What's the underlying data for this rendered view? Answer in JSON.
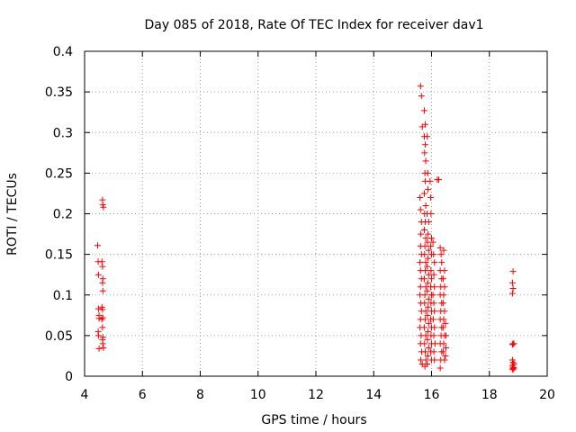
{
  "chart_data": {
    "type": "scatter",
    "title": "Day 085 of 2018, Rate Of TEC Index for receiver dav1",
    "xlabel": "GPS time / hours",
    "ylabel": "ROTI / TECUs",
    "xlim": [
      4,
      20
    ],
    "ylim": [
      0,
      0.4
    ],
    "x_ticks": [
      "4",
      "6",
      "8",
      "10",
      "12",
      "14",
      "16",
      "18",
      "20"
    ],
    "y_ticks": [
      "0",
      "0.05",
      "0.1",
      "0.15",
      "0.2",
      "0.25",
      "0.3",
      "0.35",
      "0.4"
    ],
    "grid": true,
    "marker": "+",
    "marker_color": "#ff0000",
    "series": [
      {
        "values": [
          [
            4.45,
            0.161
          ],
          [
            4.47,
            0.141
          ],
          [
            4.48,
            0.125
          ],
          [
            4.48,
            0.083
          ],
          [
            4.5,
            0.075
          ],
          [
            4.5,
            0.071
          ],
          [
            4.47,
            0.055
          ],
          [
            4.48,
            0.05
          ],
          [
            4.5,
            0.034
          ],
          [
            4.62,
            0.217
          ],
          [
            4.63,
            0.211
          ],
          [
            4.65,
            0.208
          ],
          [
            4.6,
            0.141
          ],
          [
            4.62,
            0.135
          ],
          [
            4.63,
            0.12
          ],
          [
            4.62,
            0.115
          ],
          [
            4.63,
            0.105
          ],
          [
            4.6,
            0.085
          ],
          [
            4.62,
            0.082
          ],
          [
            4.63,
            0.072
          ],
          [
            4.6,
            0.07
          ],
          [
            4.62,
            0.06
          ],
          [
            4.63,
            0.048
          ],
          [
            4.62,
            0.045
          ],
          [
            4.63,
            0.04
          ],
          [
            4.65,
            0.035
          ],
          [
            15.62,
            0.357
          ],
          [
            15.65,
            0.345
          ],
          [
            15.68,
            0.307
          ],
          [
            15.6,
            0.22
          ],
          [
            15.62,
            0.205
          ],
          [
            15.65,
            0.19
          ],
          [
            15.63,
            0.175
          ],
          [
            15.62,
            0.16
          ],
          [
            15.65,
            0.15
          ],
          [
            15.6,
            0.14
          ],
          [
            15.62,
            0.13
          ],
          [
            15.65,
            0.12
          ],
          [
            15.62,
            0.11
          ],
          [
            15.6,
            0.1
          ],
          [
            15.63,
            0.09
          ],
          [
            15.65,
            0.08
          ],
          [
            15.62,
            0.07
          ],
          [
            15.6,
            0.06
          ],
          [
            15.64,
            0.05
          ],
          [
            15.62,
            0.04
          ],
          [
            15.66,
            0.03
          ],
          [
            15.63,
            0.02
          ],
          [
            15.68,
            0.015
          ],
          [
            15.75,
            0.327
          ],
          [
            15.78,
            0.31
          ],
          [
            15.75,
            0.295
          ],
          [
            15.78,
            0.285
          ],
          [
            15.76,
            0.275
          ],
          [
            15.8,
            0.265
          ],
          [
            15.77,
            0.25
          ],
          [
            15.78,
            0.24
          ],
          [
            15.75,
            0.225
          ],
          [
            15.8,
            0.21
          ],
          [
            15.76,
            0.2
          ],
          [
            15.78,
            0.19
          ],
          [
            15.75,
            0.18
          ],
          [
            15.8,
            0.17
          ],
          [
            15.77,
            0.16
          ],
          [
            15.76,
            0.15
          ],
          [
            15.8,
            0.14
          ],
          [
            15.78,
            0.13
          ],
          [
            15.75,
            0.12
          ],
          [
            15.8,
            0.11
          ],
          [
            15.77,
            0.1
          ],
          [
            15.76,
            0.09
          ],
          [
            15.8,
            0.08
          ],
          [
            15.78,
            0.07
          ],
          [
            15.75,
            0.06
          ],
          [
            15.8,
            0.05
          ],
          [
            15.76,
            0.04
          ],
          [
            15.78,
            0.03
          ],
          [
            15.8,
            0.02
          ],
          [
            15.77,
            0.012
          ],
          [
            15.85,
            0.295
          ],
          [
            15.87,
            0.25
          ],
          [
            15.88,
            0.23
          ],
          [
            15.85,
            0.2
          ],
          [
            15.9,
            0.19
          ],
          [
            15.88,
            0.175
          ],
          [
            15.86,
            0.165
          ],
          [
            15.9,
            0.155
          ],
          [
            15.88,
            0.145
          ],
          [
            15.85,
            0.135
          ],
          [
            15.9,
            0.125
          ],
          [
            15.87,
            0.115
          ],
          [
            15.85,
            0.105
          ],
          [
            15.9,
            0.095
          ],
          [
            15.88,
            0.085
          ],
          [
            15.86,
            0.075
          ],
          [
            15.9,
            0.065
          ],
          [
            15.88,
            0.055
          ],
          [
            15.86,
            0.045
          ],
          [
            15.9,
            0.035
          ],
          [
            15.87,
            0.025
          ],
          [
            15.85,
            0.015
          ],
          [
            15.95,
            0.24
          ],
          [
            15.97,
            0.22
          ],
          [
            15.98,
            0.2
          ],
          [
            16.0,
            0.17
          ],
          [
            15.97,
            0.16
          ],
          [
            16.0,
            0.15
          ],
          [
            15.98,
            0.13
          ],
          [
            16.0,
            0.12
          ],
          [
            15.97,
            0.11
          ],
          [
            16.0,
            0.1
          ],
          [
            15.98,
            0.09
          ],
          [
            16.0,
            0.08
          ],
          [
            15.97,
            0.07
          ],
          [
            16.0,
            0.06
          ],
          [
            15.98,
            0.05
          ],
          [
            16.0,
            0.04
          ],
          [
            15.97,
            0.03
          ],
          [
            16.0,
            0.02
          ],
          [
            16.05,
            0.165
          ],
          [
            16.07,
            0.15
          ],
          [
            16.1,
            0.14
          ],
          [
            16.08,
            0.125
          ],
          [
            16.1,
            0.11
          ],
          [
            16.05,
            0.1
          ],
          [
            16.08,
            0.09
          ],
          [
            16.1,
            0.08
          ],
          [
            16.06,
            0.07
          ],
          [
            16.1,
            0.06
          ],
          [
            16.08,
            0.05
          ],
          [
            16.12,
            0.04
          ],
          [
            16.08,
            0.03
          ],
          [
            16.1,
            0.02
          ],
          [
            16.2,
            0.242
          ],
          [
            16.25,
            0.242
          ],
          [
            16.3,
            0.158
          ],
          [
            16.33,
            0.15
          ],
          [
            16.35,
            0.14
          ],
          [
            16.3,
            0.13
          ],
          [
            16.35,
            0.12
          ],
          [
            16.32,
            0.11
          ],
          [
            16.3,
            0.1
          ],
          [
            16.35,
            0.09
          ],
          [
            16.32,
            0.08
          ],
          [
            16.3,
            0.07
          ],
          [
            16.35,
            0.06
          ],
          [
            16.33,
            0.05
          ],
          [
            16.3,
            0.04
          ],
          [
            16.35,
            0.03
          ],
          [
            16.32,
            0.02
          ],
          [
            16.3,
            0.01
          ],
          [
            16.42,
            0.155
          ],
          [
            16.45,
            0.13
          ],
          [
            16.4,
            0.12
          ],
          [
            16.45,
            0.11
          ],
          [
            16.42,
            0.1
          ],
          [
            16.4,
            0.09
          ],
          [
            16.45,
            0.08
          ],
          [
            16.42,
            0.07
          ],
          [
            16.4,
            0.06
          ],
          [
            16.45,
            0.05
          ],
          [
            16.42,
            0.04
          ],
          [
            16.4,
            0.03
          ],
          [
            16.45,
            0.02
          ],
          [
            16.48,
            0.065
          ],
          [
            16.5,
            0.05
          ],
          [
            16.5,
            0.035
          ],
          [
            16.48,
            0.025
          ],
          [
            18.82,
            0.129
          ],
          [
            18.8,
            0.115
          ],
          [
            18.82,
            0.108
          ],
          [
            18.8,
            0.102
          ],
          [
            18.82,
            0.04
          ],
          [
            18.85,
            0.04
          ],
          [
            18.8,
            0.039
          ],
          [
            18.8,
            0.02
          ],
          [
            18.82,
            0.017
          ],
          [
            18.85,
            0.015
          ],
          [
            18.8,
            0.013
          ],
          [
            18.82,
            0.011
          ],
          [
            18.85,
            0.01
          ],
          [
            18.8,
            0.009
          ],
          [
            18.82,
            0.008
          ]
        ]
      }
    ]
  }
}
